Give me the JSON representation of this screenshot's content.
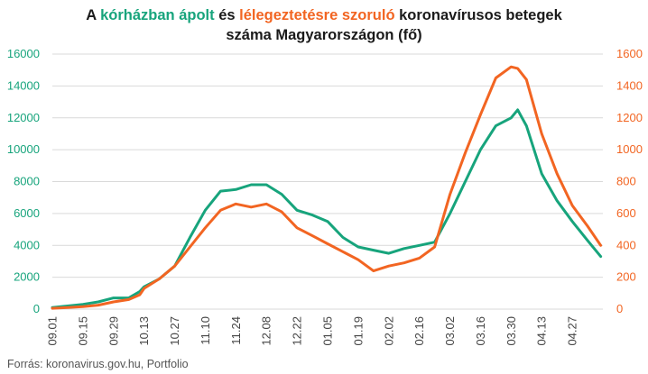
{
  "title": {
    "part1": "A ",
    "part2": "kórházban ápolt",
    "part3": " és ",
    "part4": "lélegeztetésre szoruló",
    "part5": " koronavírusos betegek",
    "line2": "száma Magyarországon  (fő)"
  },
  "source": "Forrás: koronavirus.gov.hu, Portfolio",
  "colors": {
    "green": "#17a47c",
    "orange": "#f26522",
    "grid": "#d9d9d9",
    "text": "#1a1a1a"
  },
  "chart_data": {
    "type": "line",
    "x_tick_labels": [
      "09.01",
      "09.15",
      "09.29",
      "10.13",
      "10.27",
      "11.10",
      "11.24",
      "12.08",
      "12.22",
      "01.05",
      "01.19",
      "02.02",
      "02.16",
      "03.02",
      "03.16",
      "03.30",
      "04.13",
      "04.27"
    ],
    "x_tick_days": [
      0,
      14,
      28,
      42,
      56,
      70,
      84,
      98,
      112,
      126,
      140,
      154,
      168,
      182,
      196,
      210,
      224,
      238
    ],
    "x_range": [
      0,
      252
    ],
    "y_left_ticks": [
      0,
      2000,
      4000,
      6000,
      8000,
      10000,
      12000,
      14000,
      16000
    ],
    "y_left_range": [
      0,
      16000
    ],
    "y_right_ticks": [
      0,
      200,
      400,
      600,
      800,
      1000,
      1200,
      1400,
      1600
    ],
    "y_right_range": [
      0,
      1600
    ],
    "grid": true,
    "series": [
      {
        "name": "kórházban ápolt",
        "axis": "left",
        "color": "#17a47c",
        "x": [
          0,
          7,
          14,
          21,
          28,
          35,
          40,
          42,
          49,
          56,
          63,
          70,
          77,
          84,
          91,
          98,
          105,
          112,
          119,
          126,
          133,
          140,
          147,
          154,
          161,
          168,
          175,
          182,
          189,
          196,
          203,
          210,
          213,
          217,
          224,
          231,
          238,
          245,
          251
        ],
        "y": [
          100,
          200,
          300,
          450,
          700,
          700,
          1100,
          1400,
          1900,
          2700,
          4500,
          6200,
          7400,
          7500,
          7800,
          7800,
          7200,
          6200,
          5900,
          5500,
          4500,
          3900,
          3700,
          3500,
          3800,
          4000,
          4200,
          6000,
          8000,
          10000,
          11500,
          12000,
          12500,
          11500,
          8500,
          6800,
          5500,
          4300,
          3300
        ]
      },
      {
        "name": "lélegeztetésre szoruló",
        "axis": "right",
        "color": "#f26522",
        "x": [
          0,
          7,
          14,
          21,
          28,
          35,
          40,
          42,
          49,
          56,
          63,
          70,
          77,
          84,
          91,
          98,
          105,
          112,
          119,
          126,
          133,
          140,
          147,
          154,
          161,
          168,
          175,
          182,
          189,
          196,
          203,
          210,
          213,
          217,
          224,
          231,
          238,
          245,
          251
        ],
        "y": [
          5,
          10,
          15,
          25,
          45,
          60,
          90,
          130,
          190,
          270,
          390,
          510,
          620,
          660,
          640,
          660,
          610,
          510,
          460,
          410,
          360,
          310,
          240,
          270,
          290,
          320,
          390,
          720,
          980,
          1220,
          1450,
          1520,
          1510,
          1440,
          1100,
          850,
          650,
          520,
          400
        ]
      }
    ]
  }
}
